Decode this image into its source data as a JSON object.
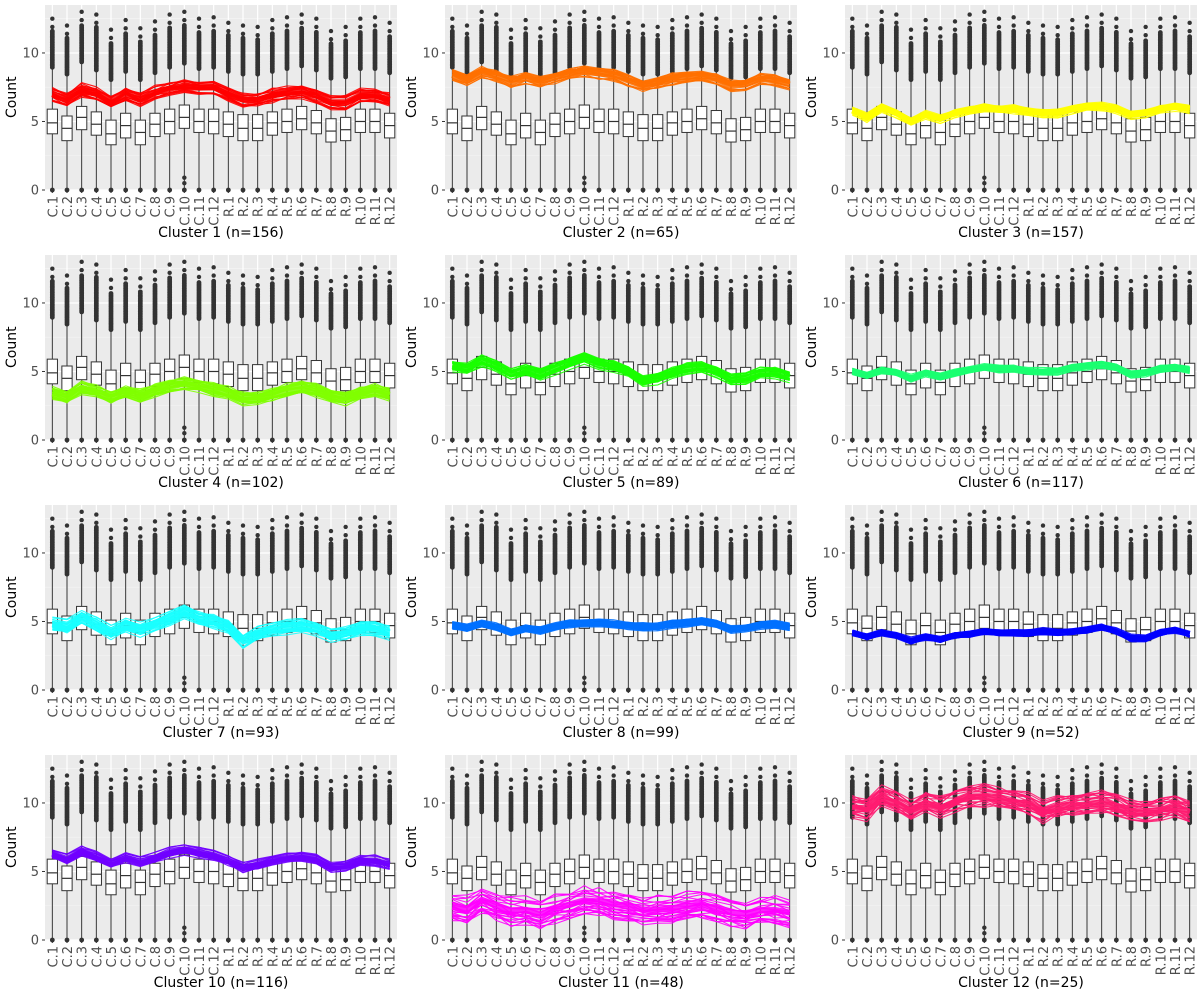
{
  "chart_data": {
    "type": "boxplot",
    "layout": "4 rows x 3 columns of small multiples",
    "background": "#EBEBEB",
    "grid": true,
    "ylabel": "Count",
    "ylim": [
      0,
      13.5
    ],
    "yticks": [
      0,
      5,
      10
    ],
    "samples": [
      "C.1",
      "C.2",
      "C.3",
      "C.4",
      "C.5",
      "C.6",
      "C.7",
      "C.8",
      "C.9",
      "C.10",
      "C.11",
      "C.12",
      "R.1",
      "R.2",
      "R.3",
      "R.4",
      "R.5",
      "R.6",
      "R.7",
      "R.8",
      "R.9",
      "R.10",
      "R.11",
      "R.12"
    ],
    "boxplot_stats": {
      "q1": [
        4.1,
        3.6,
        4.4,
        4.0,
        3.3,
        3.8,
        3.3,
        3.9,
        4.1,
        4.5,
        4.2,
        4.1,
        3.9,
        3.6,
        3.6,
        4.0,
        4.2,
        4.4,
        4.1,
        3.5,
        3.6,
        4.2,
        4.2,
        3.8
      ],
      "median": [
        4.9,
        4.5,
        5.3,
        4.8,
        4.1,
        4.7,
        4.2,
        4.8,
        5.0,
        5.3,
        5.0,
        5.0,
        4.8,
        4.5,
        4.5,
        4.9,
        5.0,
        5.2,
        4.9,
        4.3,
        4.4,
        5.0,
        5.0,
        4.7
      ],
      "q3": [
        5.9,
        5.4,
        6.1,
        5.7,
        5.1,
        5.6,
        5.1,
        5.6,
        5.9,
        6.2,
        5.9,
        5.9,
        5.7,
        5.5,
        5.5,
        5.7,
        5.9,
        6.1,
        5.8,
        5.2,
        5.3,
        5.9,
        5.9,
        5.6
      ],
      "whisker_low": [
        0.1,
        0.1,
        0.1,
        0.1,
        0.1,
        0.1,
        0.1,
        0.1,
        0.1,
        0.1,
        0.1,
        0.1,
        0.1,
        0.1,
        0.1,
        0.1,
        0.1,
        0.1,
        0.1,
        0.1,
        0.1,
        0.1,
        0.1,
        0.1
      ],
      "whisker_high": [
        8.9,
        8.4,
        9.3,
        8.7,
        8.0,
        8.6,
        8.0,
        8.5,
        8.9,
        9.2,
        8.8,
        8.9,
        8.6,
        8.4,
        8.4,
        8.6,
        8.8,
        9.0,
        8.7,
        8.1,
        8.2,
        8.8,
        8.8,
        8.5
      ],
      "outlier_max": [
        12.5,
        12.0,
        13.0,
        12.8,
        11.7,
        12.4,
        11.8,
        12.3,
        12.8,
        13.0,
        12.5,
        12.6,
        12.2,
        12.0,
        11.9,
        12.4,
        12.6,
        12.8,
        12.5,
        11.6,
        11.9,
        12.5,
        12.6,
        12.2
      ],
      "low_outliers_at": 0
    },
    "clusters": [
      {
        "title": "Cluster 1 (n=156)",
        "color": "#FF0000",
        "profile": [
          7.0,
          6.6,
          7.3,
          7.0,
          6.4,
          7.0,
          6.6,
          7.1,
          7.4,
          7.6,
          7.5,
          7.5,
          7.0,
          6.6,
          6.6,
          6.9,
          7.1,
          7.2,
          6.9,
          6.4,
          6.4,
          6.9,
          6.9,
          6.6
        ],
        "spread": 0.45
      },
      {
        "title": "Cluster 2 (n=65)",
        "color": "#FF7000",
        "profile": [
          8.4,
          8.0,
          8.6,
          8.3,
          7.9,
          8.2,
          7.9,
          8.2,
          8.5,
          8.7,
          8.5,
          8.4,
          8.0,
          7.6,
          7.8,
          8.1,
          8.2,
          8.3,
          8.1,
          7.6,
          7.7,
          8.1,
          8.0,
          7.7
        ],
        "spread": 0.4
      },
      {
        "title": "Cluster 3 (n=157)",
        "color": "#FFFF00",
        "profile": [
          5.8,
          5.3,
          6.0,
          5.6,
          5.0,
          5.5,
          5.2,
          5.6,
          5.8,
          6.0,
          5.9,
          5.9,
          5.7,
          5.6,
          5.6,
          5.9,
          6.1,
          6.1,
          5.9,
          5.5,
          5.6,
          5.9,
          6.1,
          5.9
        ],
        "spread": 0.3
      },
      {
        "title": "Cluster 4 (n=102)",
        "color": "#80FF00",
        "profile": [
          3.4,
          3.1,
          3.8,
          3.5,
          3.1,
          3.5,
          3.2,
          3.6,
          3.9,
          4.1,
          3.9,
          3.7,
          3.4,
          3.0,
          3.0,
          3.3,
          3.6,
          3.8,
          3.6,
          3.2,
          3.0,
          3.4,
          3.6,
          3.3
        ],
        "spread": 0.45
      },
      {
        "title": "Cluster 5 (n=89)",
        "color": "#1AFF00",
        "profile": [
          5.4,
          5.2,
          5.8,
          5.4,
          4.8,
          5.1,
          4.8,
          5.2,
          5.6,
          6.0,
          5.6,
          5.4,
          5.0,
          4.3,
          4.5,
          4.9,
          5.2,
          5.3,
          5.0,
          4.4,
          4.5,
          4.9,
          4.9,
          4.6
        ],
        "spread": 0.4
      },
      {
        "title": "Cluster 6 (n=117)",
        "color": "#1AFF70",
        "profile": [
          5.0,
          4.7,
          5.1,
          4.9,
          4.5,
          4.9,
          4.6,
          4.9,
          5.1,
          5.3,
          5.2,
          5.2,
          5.0,
          5.0,
          5.0,
          5.3,
          5.4,
          5.5,
          5.3,
          4.8,
          4.9,
          5.2,
          5.3,
          5.1
        ],
        "spread": 0.25
      },
      {
        "title": "Cluster 7 (n=93)",
        "color": "#1AFFFF",
        "profile": [
          4.8,
          4.6,
          5.3,
          4.8,
          4.2,
          4.7,
          4.4,
          4.8,
          5.2,
          5.7,
          5.2,
          5.0,
          4.6,
          3.6,
          4.1,
          4.4,
          4.6,
          4.7,
          4.5,
          4.0,
          4.1,
          4.5,
          4.5,
          4.2
        ],
        "spread": 0.45
      },
      {
        "title": "Cluster 8 (n=99)",
        "color": "#0070FF",
        "profile": [
          4.7,
          4.5,
          4.8,
          4.6,
          4.2,
          4.5,
          4.3,
          4.6,
          4.8,
          4.9,
          4.9,
          4.8,
          4.7,
          4.6,
          4.6,
          4.8,
          4.9,
          5.0,
          4.8,
          4.4,
          4.5,
          4.7,
          4.8,
          4.6
        ],
        "spread": 0.25
      },
      {
        "title": "Cluster 9 (n=52)",
        "color": "#0000FF",
        "profile": [
          4.2,
          3.9,
          4.2,
          4.0,
          3.6,
          3.9,
          3.7,
          4.0,
          4.1,
          4.3,
          4.2,
          4.2,
          4.2,
          4.3,
          4.2,
          4.3,
          4.4,
          4.6,
          4.3,
          3.8,
          3.8,
          4.2,
          4.4,
          4.1
        ],
        "spread": 0.25
      },
      {
        "title": "Cluster 10 (n=116)",
        "color": "#7000FF",
        "profile": [
          6.3,
          5.9,
          6.5,
          6.1,
          5.6,
          6.0,
          5.7,
          6.0,
          6.4,
          6.6,
          6.4,
          6.2,
          5.8,
          5.3,
          5.5,
          5.8,
          6.0,
          6.1,
          5.9,
          5.3,
          5.4,
          5.8,
          5.8,
          5.5
        ],
        "spread": 0.35
      },
      {
        "title": "Cluster 11 (n=48)",
        "color": "#FF00FF",
        "profile": [
          2.4,
          2.2,
          2.9,
          2.5,
          2.1,
          2.2,
          1.9,
          2.3,
          2.6,
          2.9,
          2.8,
          2.6,
          2.5,
          2.2,
          2.2,
          2.3,
          2.5,
          2.6,
          2.3,
          2.0,
          1.9,
          2.2,
          2.2,
          2.0
        ],
        "spread": 0.9
      },
      {
        "title": "Cluster 12 (n=25)",
        "color": "#FF1A70",
        "profile": [
          9.7,
          9.5,
          10.4,
          10.0,
          9.4,
          9.9,
          9.6,
          10.1,
          10.4,
          10.5,
          10.3,
          10.1,
          9.9,
          9.3,
          9.6,
          9.8,
          9.9,
          10.0,
          9.8,
          9.4,
          9.3,
          9.5,
          9.7,
          9.3
        ],
        "spread": 0.9
      }
    ]
  }
}
